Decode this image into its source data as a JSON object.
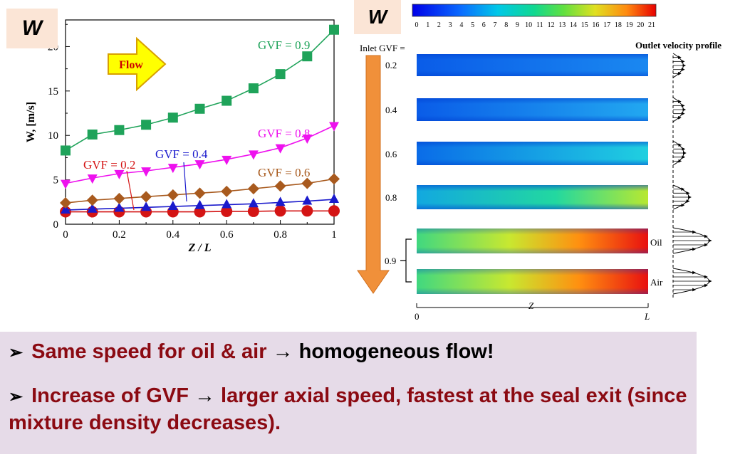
{
  "w_label_left": "W",
  "w_label_right": "W",
  "chart_data": {
    "type": "line",
    "xlabel": "Z / L",
    "ylabel": "W, [m/s]",
    "xlim": [
      0,
      1
    ],
    "ylim": [
      0,
      23
    ],
    "xticks": [
      0,
      0.2,
      0.4,
      0.6,
      0.8,
      1
    ],
    "yticks": [
      0,
      5,
      10,
      15,
      20
    ],
    "x": [
      0,
      0.1,
      0.2,
      0.3,
      0.4,
      0.5,
      0.6,
      0.7,
      0.8,
      0.9,
      1.0
    ],
    "grid": false,
    "flow_label": "Flow",
    "series": [
      {
        "name": "GVF = 0.2",
        "color": "#d41414",
        "marker": "circle",
        "values": [
          1.4,
          1.4,
          1.4,
          1.4,
          1.4,
          1.4,
          1.45,
          1.45,
          1.5,
          1.5,
          1.5
        ]
      },
      {
        "name": "GVF = 0.4",
        "color": "#1a1acc",
        "marker": "triangle-up",
        "values": [
          1.6,
          1.7,
          1.8,
          1.9,
          2.0,
          2.1,
          2.2,
          2.3,
          2.45,
          2.6,
          2.8
        ]
      },
      {
        "name": "GVF = 0.6",
        "color": "#a85a1e",
        "marker": "diamond",
        "values": [
          2.4,
          2.7,
          2.9,
          3.1,
          3.3,
          3.5,
          3.7,
          4.0,
          4.3,
          4.6,
          5.1
        ]
      },
      {
        "name": "GVF = 0.8",
        "color": "#ee11ee",
        "marker": "triangle-down",
        "values": [
          4.6,
          5.2,
          5.7,
          6.0,
          6.4,
          6.8,
          7.3,
          7.9,
          8.6,
          9.7,
          11.1
        ]
      },
      {
        "name": "GVF = 0.9",
        "color": "#1fa35a",
        "marker": "square",
        "values": [
          8.3,
          10.1,
          10.6,
          11.2,
          12.0,
          13.0,
          13.9,
          15.3,
          16.9,
          18.9,
          21.9
        ]
      }
    ]
  },
  "contour": {
    "colorbar_ticks": [
      "0",
      "1",
      "2",
      "3",
      "4",
      "5",
      "6",
      "7",
      "8",
      "9",
      "10",
      "11",
      "12",
      "13",
      "14",
      "15",
      "16",
      "17",
      "18",
      "19",
      "20",
      "21"
    ],
    "inlet_label": "Inlet GVF =",
    "gvf_values": [
      "0.2",
      "0.4",
      "0.6",
      "0.8"
    ],
    "gvf_09": "0.9",
    "oil_label": "Oil",
    "air_label": "Air",
    "outlet_label": "Outlet velocity profile",
    "axis_start": "0",
    "axis_mid": "Z",
    "axis_end": "L"
  },
  "bullets": [
    {
      "red": "Same speed for oil & air",
      "arrow": "→",
      "black": "homogeneous flow!"
    },
    {
      "red_a": "Increase of GVF",
      "arrow": "→",
      "red_b": "larger axial speed, fastest at the seal exit (since mixture density decreases)."
    }
  ],
  "colors": {
    "bullet_red": "#8b0a12",
    "box_bg": "#e6dbe8",
    "label_bg": "#fbe5d6",
    "arrow_orange": "#f0903a"
  }
}
